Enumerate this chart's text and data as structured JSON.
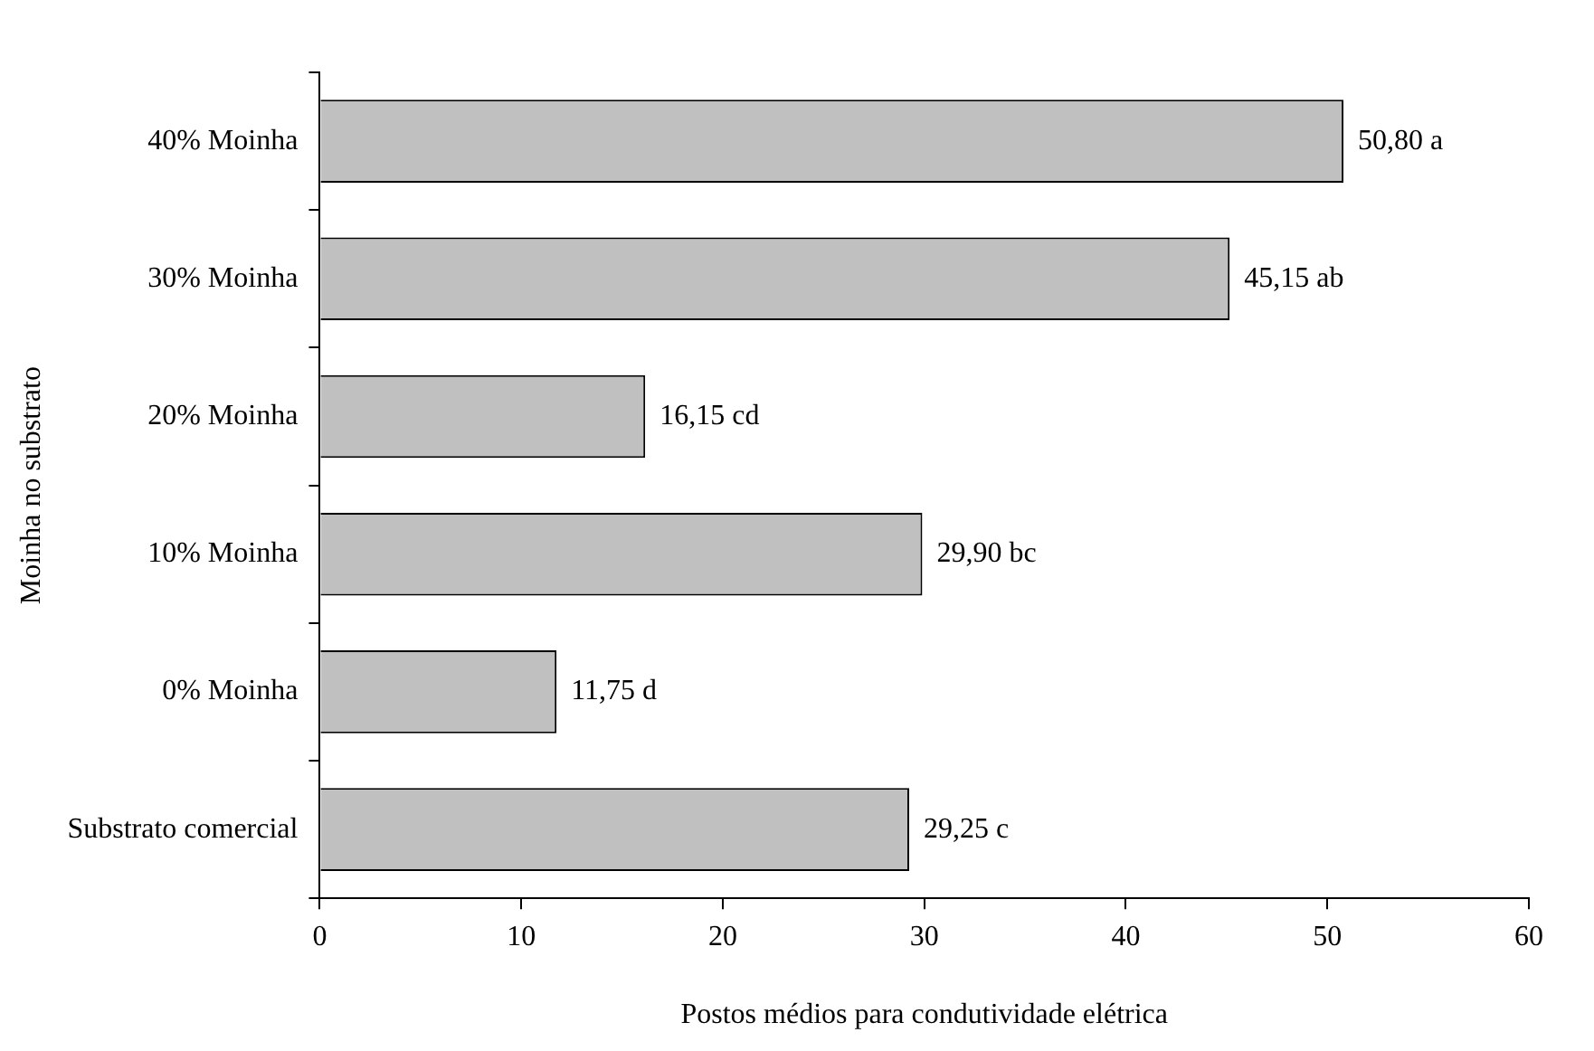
{
  "chart_data": {
    "type": "bar",
    "orientation": "horizontal",
    "xlabel": "Postos médios para condutividade elétrica",
    "ylabel": "Moinha no substrato",
    "categories": [
      "40% Moinha",
      "30% Moinha",
      "20% Moinha",
      "10% Moinha",
      "0% Moinha",
      "Substrato comercial"
    ],
    "values": [
      50.8,
      45.15,
      16.15,
      29.9,
      11.75,
      29.25
    ],
    "value_labels": [
      "50,80 a",
      "45,15 ab",
      "16,15 cd",
      "29,90 bc",
      "11,75 d",
      "29,25 c"
    ],
    "color": "#c0c0c0",
    "xlim": [
      0,
      60
    ],
    "xticks": [
      0,
      10,
      20,
      30,
      40,
      50,
      60
    ],
    "grid": false,
    "legend": false
  }
}
